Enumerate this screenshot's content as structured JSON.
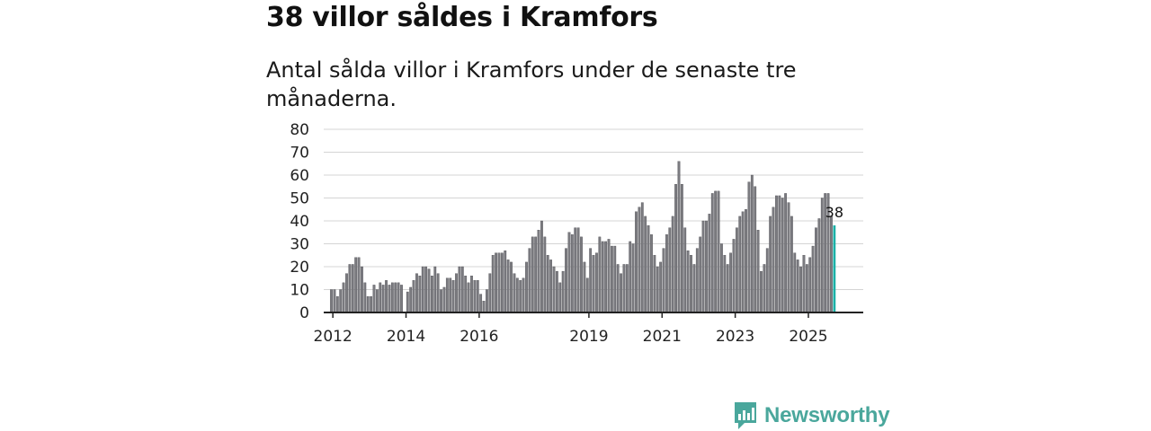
{
  "title": "38 villor såldes i Kramfors",
  "subtitle": "Antal sålda villor i Kramfors under de senaste tre månaderna.",
  "brand": {
    "name": "Newsworthy",
    "icon": "newsworthy-logo-icon"
  },
  "colors": {
    "bar": "#7b7b80",
    "bar_edge": "#4a4a4f",
    "highlight": "#1bb0a6",
    "grid": "#d4d4d4",
    "axis": "#222222",
    "brand": "#4aa79c"
  },
  "chart_data": {
    "type": "bar",
    "title": "Antal sålda villor i Kramfors under de senaste tre månaderna.",
    "xlabel": "",
    "ylabel": "",
    "ylim": [
      0,
      80
    ],
    "yticks": [
      0,
      10,
      20,
      30,
      40,
      50,
      60,
      70,
      80
    ],
    "grid": true,
    "x_start": 2011.75,
    "x_end": 2026.5,
    "first_bar": 2011.96,
    "bar_step": 0.08333,
    "xtick_labels": [
      {
        "label": "2012",
        "x": 2012
      },
      {
        "label": "2014",
        "x": 2014
      },
      {
        "label": "2016",
        "x": 2016
      },
      {
        "label": "2019",
        "x": 2019
      },
      {
        "label": "2021",
        "x": 2021
      },
      {
        "label": "2023",
        "x": 2023
      },
      {
        "label": "2025",
        "x": 2025
      }
    ],
    "values": [
      10,
      10,
      7,
      10,
      13,
      17,
      21,
      21,
      24,
      24,
      20,
      13,
      7,
      7,
      12,
      10,
      13,
      12,
      14,
      12,
      13,
      13,
      13,
      12,
      0,
      9,
      11,
      14,
      17,
      16,
      20,
      20,
      19,
      16,
      20,
      17,
      10,
      11,
      15,
      15,
      14,
      17,
      20,
      20,
      16,
      13,
      16,
      14,
      14,
      8,
      5,
      10,
      17,
      25,
      26,
      26,
      26,
      27,
      23,
      22,
      17,
      15,
      14,
      15,
      22,
      28,
      33,
      33,
      36,
      40,
      33,
      25,
      23,
      20,
      18,
      13,
      18,
      28,
      35,
      34,
      37,
      37,
      33,
      22,
      15,
      28,
      25,
      26,
      33,
      31,
      31,
      32,
      29,
      29,
      21,
      17,
      21,
      21,
      31,
      30,
      44,
      46,
      48,
      42,
      38,
      34,
      25,
      20,
      22,
      28,
      34,
      37,
      42,
      56,
      66,
      56,
      37,
      27,
      25,
      21,
      28,
      33,
      40,
      40,
      43,
      52,
      53,
      53,
      30,
      25,
      21,
      26,
      32,
      37,
      42,
      44,
      45,
      57,
      60,
      55,
      36,
      18,
      21,
      28,
      42,
      46,
      51,
      51,
      50,
      52,
      48,
      42,
      26,
      23,
      20,
      25,
      21,
      24,
      29,
      37,
      41,
      50,
      52,
      52,
      42,
      38
    ],
    "highlight_index": 165,
    "highlight_label": "38"
  }
}
